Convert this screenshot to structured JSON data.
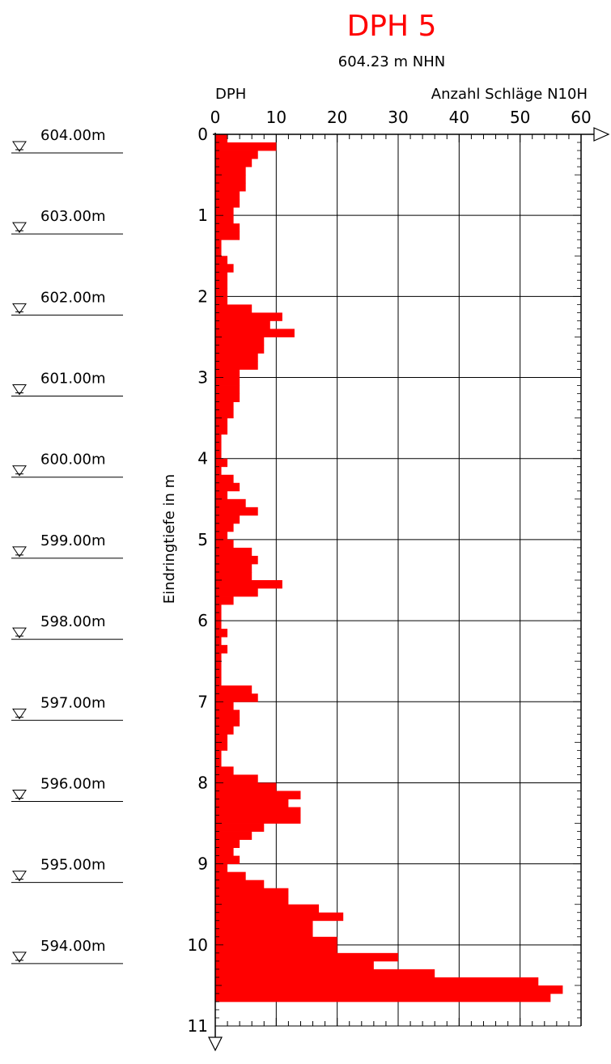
{
  "chart_data": {
    "type": "bar",
    "orientation": "horizontal",
    "title": "DPH 5",
    "subtitle": "604.23 m NHN",
    "series_label": "DPH",
    "xlabel": "Anzahl Schläge N10H",
    "ylabel": "Eindringtiefe in m",
    "xlim": [
      0,
      60
    ],
    "ylim": [
      0,
      11
    ],
    "x_ticks": [
      "0",
      "10",
      "20",
      "30",
      "40",
      "50",
      "60"
    ],
    "y_ticks": [
      "0",
      "1",
      "2",
      "3",
      "4",
      "5",
      "6",
      "7",
      "8",
      "9",
      "10",
      "11"
    ],
    "grid": true,
    "bar_color": "#ff0000",
    "bin_size_m": 0.1,
    "values": [
      2,
      10,
      7,
      6,
      5,
      5,
      5,
      4,
      4,
      3,
      3,
      4,
      4,
      1,
      1,
      2,
      3,
      2,
      2,
      2,
      2,
      6,
      11,
      9,
      13,
      8,
      8,
      7,
      7,
      4,
      4,
      4,
      4,
      3,
      3,
      2,
      2,
      1,
      1,
      1,
      2,
      1,
      3,
      4,
      2,
      5,
      7,
      4,
      3,
      2,
      3,
      6,
      7,
      6,
      6,
      11,
      7,
      3,
      1,
      1,
      1,
      2,
      1,
      2,
      1,
      1,
      1,
      1,
      6,
      7,
      3,
      4,
      4,
      3,
      2,
      2,
      1,
      1,
      3,
      7,
      10,
      14,
      12,
      14,
      14,
      8,
      6,
      4,
      3,
      4,
      2,
      5,
      8,
      12,
      12,
      17,
      21,
      16,
      16,
      20,
      20,
      30,
      26,
      36,
      53,
      57,
      55
    ]
  },
  "elevation_markers": [
    "604.00m",
    "603.00m",
    "602.00m",
    "601.00m",
    "600.00m",
    "599.00m",
    "598.00m",
    "597.00m",
    "596.00m",
    "595.00m",
    "594.00m"
  ],
  "colors": {
    "title": "#ff0000",
    "bars": "#ff0000",
    "lines": "#000000"
  }
}
